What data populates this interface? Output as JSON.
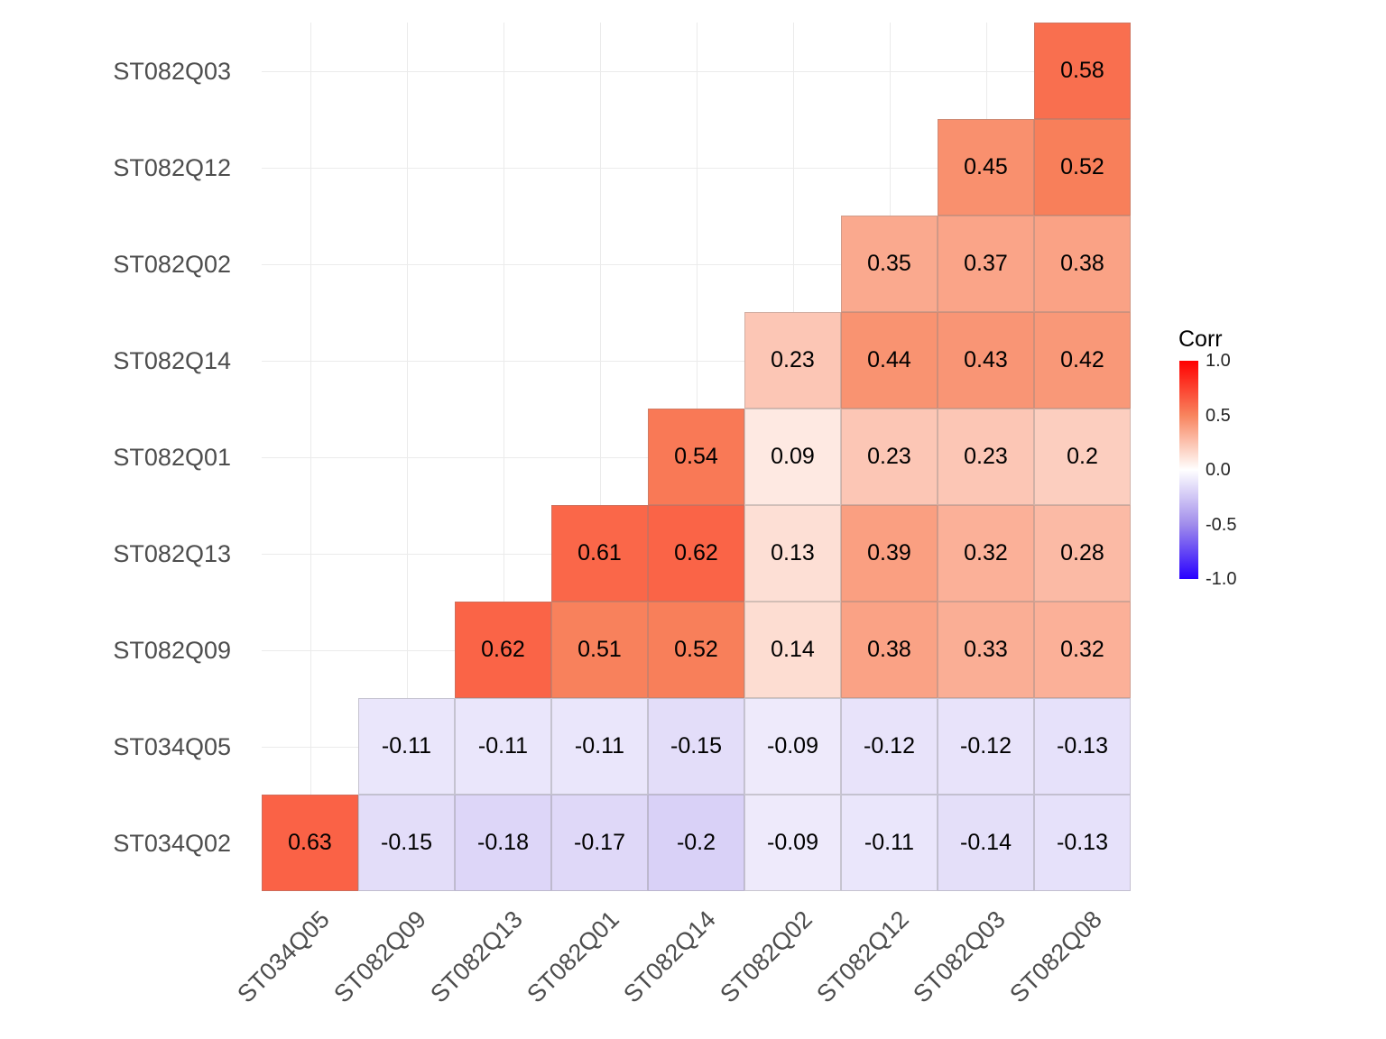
{
  "chart_data": {
    "type": "heatmap",
    "title": "",
    "x_categories": [
      "ST034Q05",
      "ST082Q09",
      "ST082Q13",
      "ST082Q01",
      "ST082Q14",
      "ST082Q02",
      "ST082Q12",
      "ST082Q03",
      "ST082Q08"
    ],
    "y_categories": [
      "ST082Q03",
      "ST082Q12",
      "ST082Q02",
      "ST082Q14",
      "ST082Q01",
      "ST082Q13",
      "ST082Q09",
      "ST034Q05",
      "ST034Q02"
    ],
    "values": [
      [
        null,
        null,
        null,
        null,
        null,
        null,
        null,
        null,
        0.58
      ],
      [
        null,
        null,
        null,
        null,
        null,
        null,
        null,
        0.45,
        0.52
      ],
      [
        null,
        null,
        null,
        null,
        null,
        null,
        0.35,
        0.37,
        0.38
      ],
      [
        null,
        null,
        null,
        null,
        null,
        0.23,
        0.44,
        0.43,
        0.42
      ],
      [
        null,
        null,
        null,
        null,
        0.54,
        0.09,
        0.23,
        0.23,
        0.2
      ],
      [
        null,
        null,
        null,
        0.61,
        0.62,
        0.13,
        0.39,
        0.32,
        0.28
      ],
      [
        null,
        null,
        0.62,
        0.51,
        0.52,
        0.14,
        0.38,
        0.33,
        0.32
      ],
      [
        null,
        -0.11,
        -0.11,
        -0.11,
        -0.15,
        -0.09,
        -0.12,
        -0.12,
        -0.13
      ],
      [
        0.63,
        -0.15,
        -0.18,
        -0.17,
        -0.2,
        -0.09,
        -0.11,
        -0.14,
        -0.13
      ]
    ],
    "legend": {
      "title": "Corr",
      "ticks": [
        "1.0",
        "0.5",
        "0.0",
        "-0.5",
        "-1.0"
      ],
      "max": 1.0,
      "min": -1.0,
      "colors": {
        "high": "#FF0000",
        "mid": "#FFFFFF",
        "low": "#2800FF"
      },
      "position": "right"
    },
    "grid": true,
    "xlabel": "",
    "ylabel": ""
  }
}
